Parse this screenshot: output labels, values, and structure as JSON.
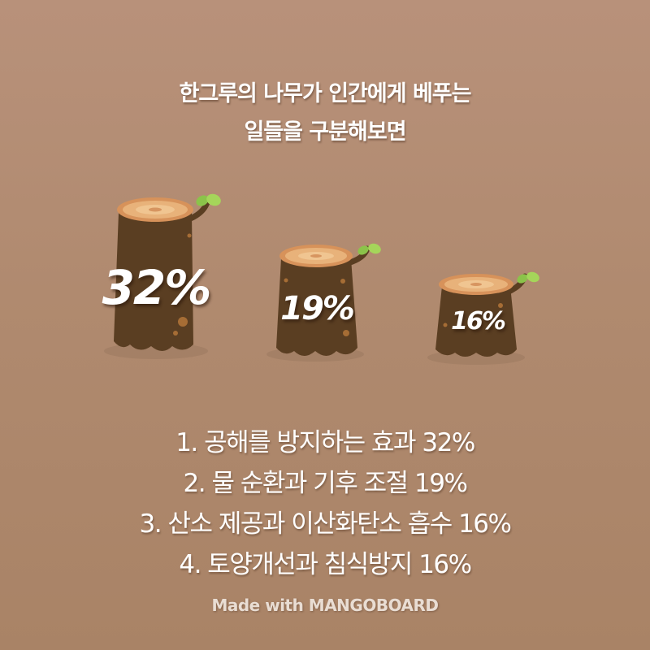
{
  "title": {
    "line1": "한그루의 나무가 인간에게 베푸는",
    "line2": "일들을 구분해보면"
  },
  "stumps": [
    {
      "label": "32%",
      "value": 32
    },
    {
      "label": "19%",
      "value": 19
    },
    {
      "label": "16%",
      "value": 16
    }
  ],
  "benefits": [
    "1. 공해를 방지하는 효과 32%",
    "2. 물 순환과 기후 조절 19%",
    "3. 산소 제공과 이산화탄소 흡수 16%",
    "4. 토양개선과 침식방지 16%"
  ],
  "credit": "Made with MANGOBOARD",
  "colors": {
    "background": "#b08a6f",
    "stump_bark": "#5a3e22",
    "stump_top": "#e8b27a",
    "leaf": "#8bc34a"
  }
}
